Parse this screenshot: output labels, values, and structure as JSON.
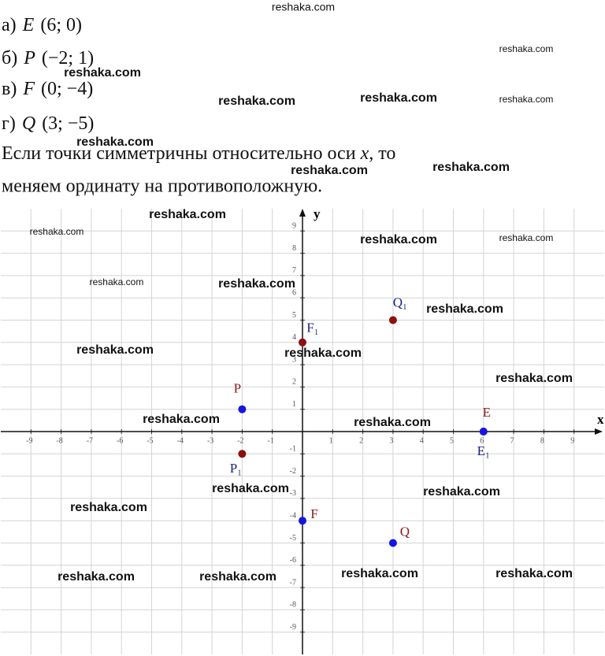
{
  "items": [
    {
      "label": "а)",
      "point": "E",
      "coords": "(6; 0)"
    },
    {
      "label": "б)",
      "point": "P",
      "coords": "(−2; 1)"
    },
    {
      "label": "в)",
      "point": "F",
      "coords": "(0; −4)"
    },
    {
      "label": "г)",
      "point": "Q",
      "coords": "(3; −5)"
    }
  ],
  "explanation": {
    "before": "Если точки симметричны относительно оси",
    "axis": "x",
    "after": ", то",
    "line2": "меняем ординату на противоположную."
  },
  "watermarks": [
    "reshaka.com",
    "reshaka.com",
    "reshaka.com",
    "reshaka.com",
    "reshaka.com",
    "reshaka.com",
    "reshaka.com",
    "reshaka.com",
    "reshaka.com",
    "reshaka.com",
    "reshaka.com",
    "reshaka.com",
    "reshaka.com",
    "reshaka.com",
    "reshaka.com",
    "reshaka.com",
    "reshaka.com",
    "reshaka.com",
    "reshaka.com",
    "reshaka.com",
    "reshaka.com",
    "reshaka.com",
    "reshaka.com",
    "reshaka.com",
    "reshaka.com",
    "reshaka.com",
    "reshaka.com",
    "reshaka.com"
  ],
  "chart_data": {
    "type": "scatter",
    "xlabel": "x",
    "ylabel": "y",
    "xlim": [
      -10,
      10
    ],
    "ylim": [
      -10,
      10
    ],
    "xticks": [
      -9,
      -8,
      -7,
      -6,
      -5,
      -4,
      -3,
      -2,
      -1,
      1,
      2,
      3,
      4,
      5,
      6,
      7,
      8,
      9
    ],
    "yticks": [
      -9,
      -8,
      -7,
      -6,
      -5,
      -4,
      -3,
      -2,
      -1,
      1,
      2,
      3,
      4,
      5,
      6,
      7,
      8,
      9
    ],
    "grid": true,
    "series": [
      {
        "color": "#8b1010",
        "label_color": "#1a237e",
        "x": [
          6,
          -2,
          0,
          3
        ],
        "values": [
          0,
          -1,
          4,
          5
        ],
        "labels": [
          "E₁",
          "P₁",
          "F₁",
          "Q₁"
        ]
      },
      {
        "color": "#1515e0",
        "label_color": "#8b1a1a",
        "x": [
          6,
          -2,
          0,
          3
        ],
        "values": [
          0,
          1,
          -4,
          -5
        ],
        "labels": [
          "E",
          "P",
          "F",
          "Q"
        ]
      }
    ]
  }
}
